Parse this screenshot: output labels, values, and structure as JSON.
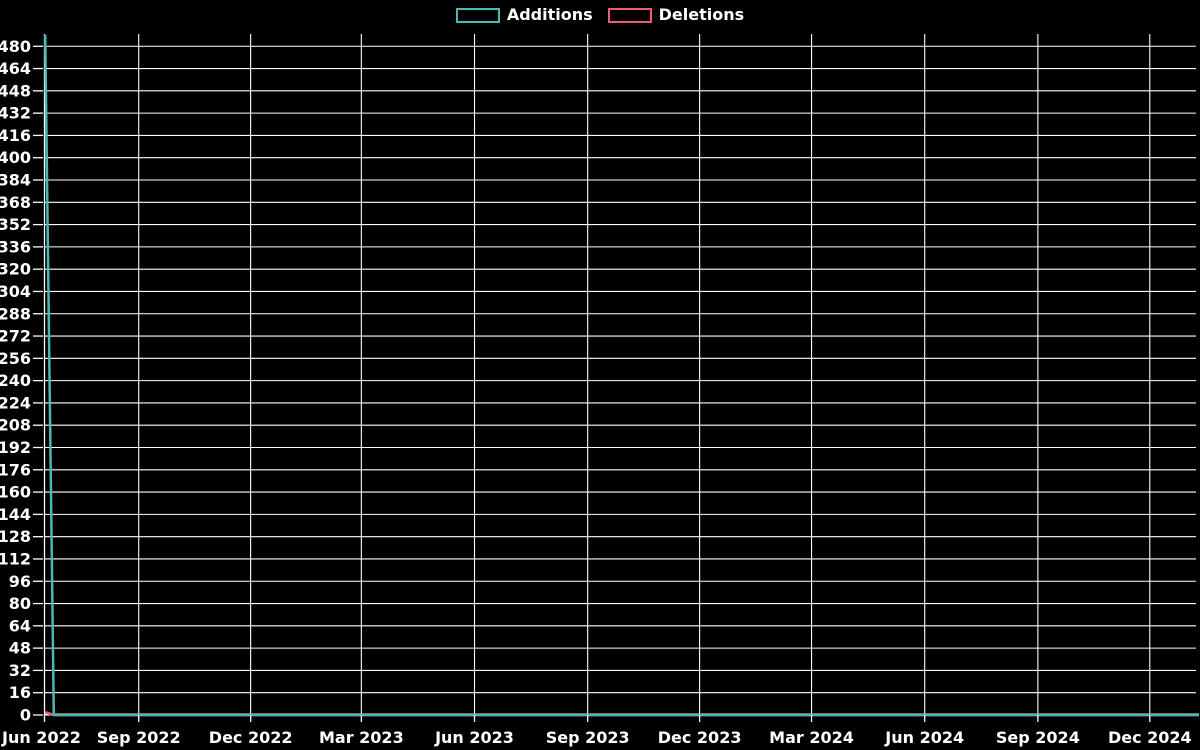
{
  "page": {
    "background_color": "#000000",
    "text_color": "#ffffff",
    "grid_color": "#ffffff"
  },
  "chart_data": {
    "type": "line",
    "title": "",
    "xlabel": "",
    "ylabel": "",
    "grid": true,
    "legend_position": "top-center",
    "x_axis": {
      "domain": [
        "2022-06-16",
        "2025-01-10"
      ],
      "ticks": [
        {
          "label": "Jun 2022",
          "date": "2022-06-01"
        },
        {
          "label": "Sep 2022",
          "date": "2022-09-01"
        },
        {
          "label": "Dec 2022",
          "date": "2022-12-01"
        },
        {
          "label": "Mar 2023",
          "date": "2023-03-01"
        },
        {
          "label": "Jun 2023",
          "date": "2023-06-01"
        },
        {
          "label": "Sep 2023",
          "date": "2023-09-01"
        },
        {
          "label": "Dec 2023",
          "date": "2023-12-01"
        },
        {
          "label": "Mar 2024",
          "date": "2024-03-01"
        },
        {
          "label": "Jun 2024",
          "date": "2024-06-01"
        },
        {
          "label": "Sep 2024",
          "date": "2024-09-01"
        },
        {
          "label": "Dec 2024",
          "date": "2024-12-01"
        }
      ]
    },
    "y_axis": {
      "min": 0,
      "max": 480,
      "step": 16,
      "plot_max": 488.8
    },
    "series": [
      {
        "name": "Additions",
        "color": "#4ab9b3",
        "points": [
          [
            "2022-06-17",
            488
          ],
          [
            "2022-06-24",
            0
          ],
          [
            "2025-01-10",
            0
          ]
        ]
      },
      {
        "name": "Deletions",
        "color": "#ed5c72",
        "points": [
          [
            "2022-06-17",
            2
          ],
          [
            "2022-06-24",
            0
          ],
          [
            "2025-01-10",
            0
          ]
        ]
      }
    ]
  }
}
